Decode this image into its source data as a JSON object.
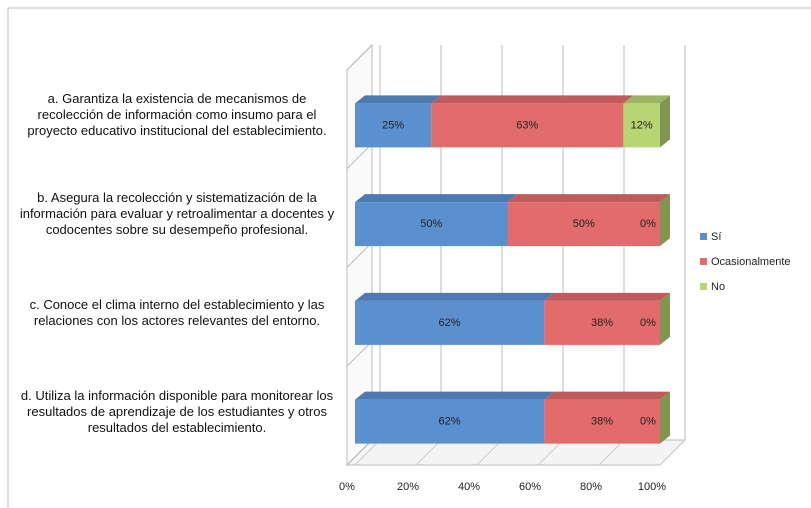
{
  "chart_data": {
    "type": "bar",
    "orientation": "horizontal",
    "stacked": true,
    "categories": [
      "a. Garantiza la existencia de mecanismos de recolección de información como insumo para el proyecto educativo institucional del establecimiento.",
      "b. Asegura la recolección y sistematización de la información para evaluar y retroalimentar a docentes y codocentes sobre su desempeño profesional.",
      "c. Conoce el clima interno del establecimiento y las relaciones con los actores relevantes del entorno.",
      "d. Utiliza la información disponible para monitorear los resultados de aprendizaje de los estudiantes y otros resultados del establecimiento."
    ],
    "series": [
      {
        "name": "Sí",
        "color": "#5a8fd0",
        "values": [
          25,
          50,
          62,
          62
        ],
        "value_labels": [
          "25%",
          "50%",
          "62%",
          "62%"
        ]
      },
      {
        "name": "Ocasionalmente",
        "color": "#e26b6b",
        "values": [
          63,
          50,
          38,
          38
        ],
        "value_labels": [
          "63%",
          "50%",
          "38%",
          "38%"
        ]
      },
      {
        "name": "No",
        "color": "#b7d572",
        "values": [
          12,
          0,
          0,
          0
        ],
        "value_labels": [
          "12%",
          "0%",
          "0%",
          "0%"
        ]
      }
    ],
    "xlim": [
      0,
      100
    ],
    "xticks": [
      {
        "value": 0,
        "label": "0%"
      },
      {
        "value": 20,
        "label": "20%"
      },
      {
        "value": 40,
        "label": "40%"
      },
      {
        "value": 60,
        "label": "60%"
      },
      {
        "value": 80,
        "label": "80%"
      },
      {
        "value": 100,
        "label": "100%"
      }
    ],
    "grid": true,
    "legend": "right"
  }
}
